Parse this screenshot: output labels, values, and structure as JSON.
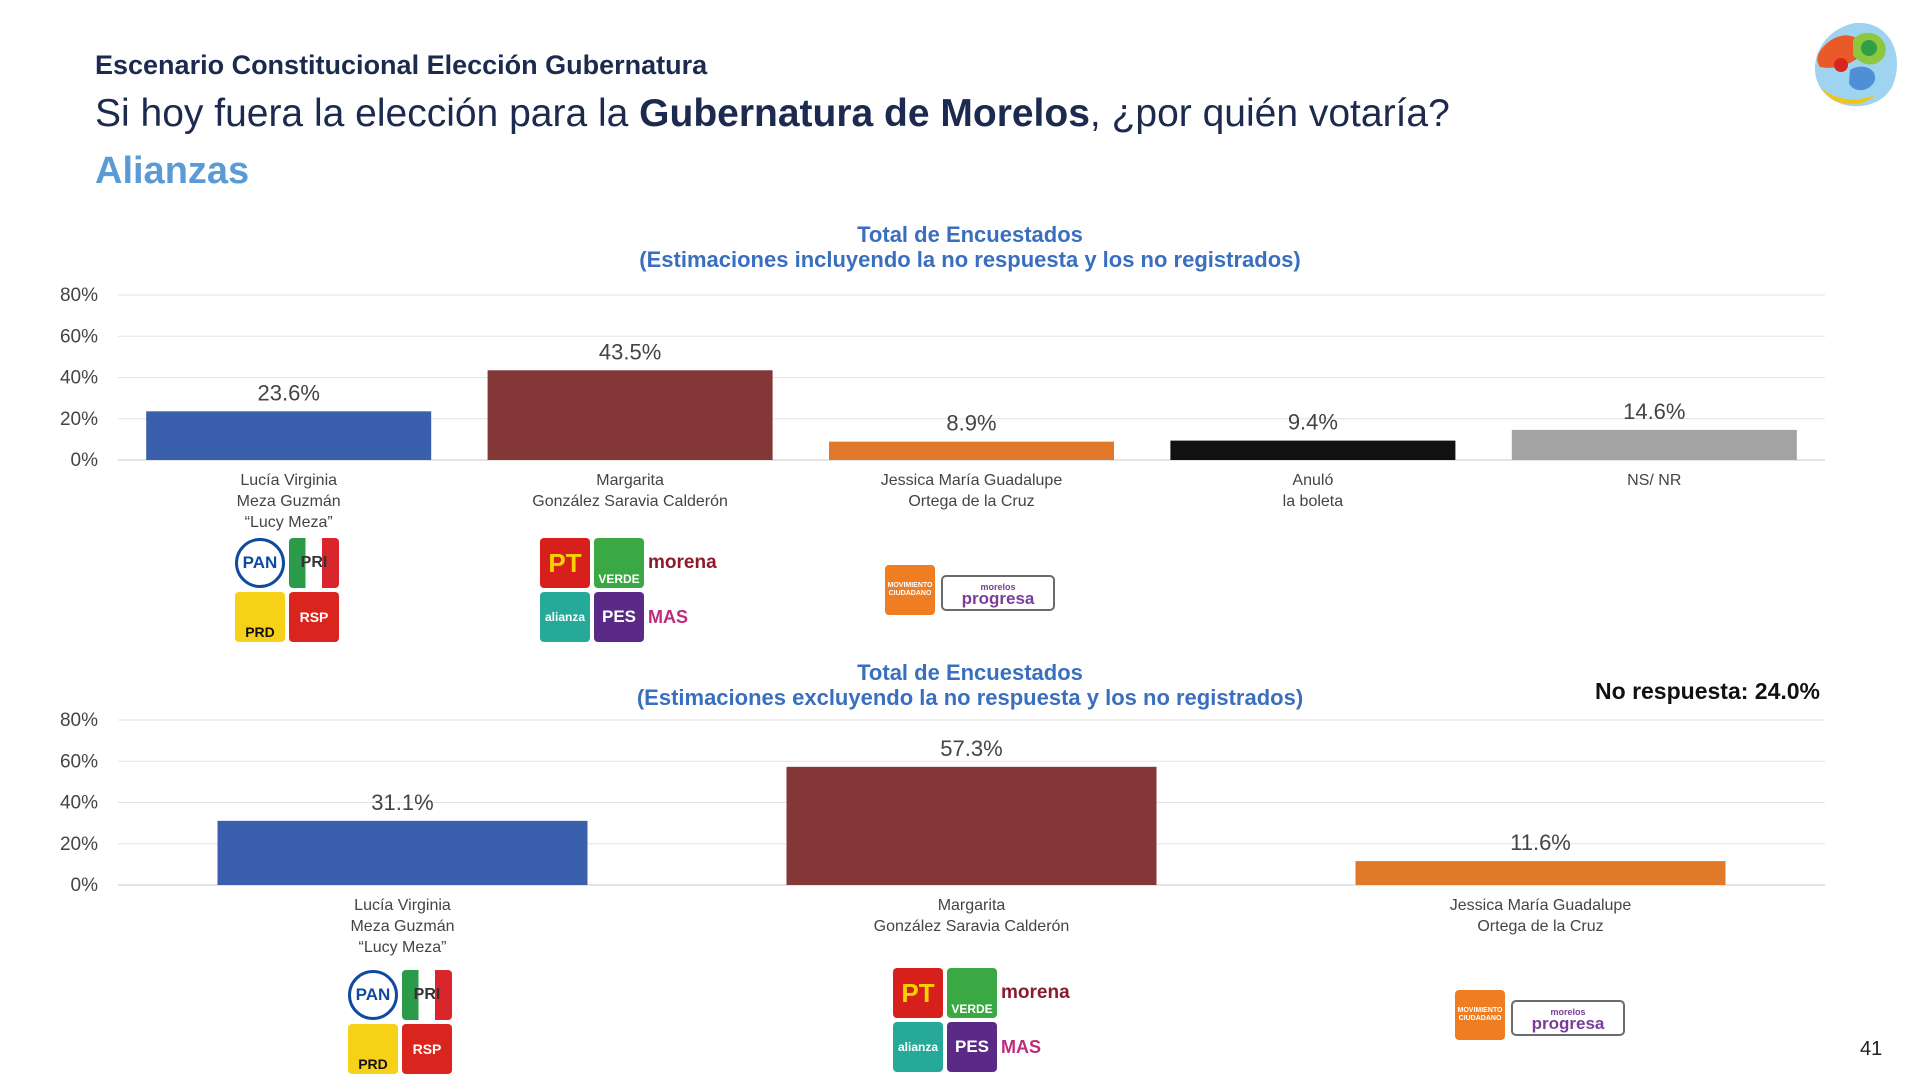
{
  "header": {
    "kicker": "Escenario Constitucional Elección Gubernatura",
    "question_pre": "Si hoy fuera la elección para la ",
    "question_bold": "Gubernatura de Morelos",
    "question_post": ", ¿por quién votaría?",
    "section": "Alianzas"
  },
  "page_number": "41",
  "no_response_note": "No respuesta: 24.0%",
  "colors": {
    "title_blue": "#3a6fc0",
    "section_blue": "#5b9bd5",
    "dark_navy": "#1b2a4e"
  },
  "chart_data": [
    {
      "type": "bar",
      "title": "Total de Encuestados",
      "subtitle": "(Estimaciones incluyendo la no respuesta y los no registrados)",
      "ylim": [
        0,
        80
      ],
      "yticks": [
        "0%",
        "20%",
        "40%",
        "60%",
        "80%"
      ],
      "grid": true,
      "categories": [
        [
          "Lucía Virginia",
          "Meza Guzmán",
          "“Lucy Meza”"
        ],
        [
          "Margarita",
          "González Saravia Calderón"
        ],
        [
          "Jessica María Guadalupe",
          "Ortega de la Cruz"
        ],
        [
          "Anuló",
          "la boleta"
        ],
        [
          "NS/ NR"
        ]
      ],
      "values": [
        23.6,
        43.5,
        8.9,
        9.4,
        14.6
      ],
      "labels": [
        "23.6%",
        "43.5%",
        "8.9%",
        "9.4%",
        "14.6%"
      ],
      "colors": [
        "#3a5fad",
        "#833737",
        "#e07a2a",
        "#111111",
        "#a3a3a3"
      ]
    },
    {
      "type": "bar",
      "title": "Total de Encuestados",
      "subtitle": "(Estimaciones excluyendo la no respuesta y los no registrados)",
      "ylim": [
        0,
        80
      ],
      "yticks": [
        "0%",
        "20%",
        "40%",
        "60%",
        "80%"
      ],
      "grid": true,
      "categories": [
        [
          "Lucía Virginia",
          "Meza Guzmán",
          "“Lucy Meza”"
        ],
        [
          "Margarita",
          "González Saravia Calderón"
        ],
        [
          "Jessica María Guadalupe",
          "Ortega de la Cruz"
        ]
      ],
      "values": [
        31.1,
        57.3,
        11.6
      ],
      "labels": [
        "31.1%",
        "57.3%",
        "11.6%"
      ],
      "colors": [
        "#3a5fad",
        "#833737",
        "#e07a2a"
      ]
    }
  ],
  "parties": {
    "pan": "PAN",
    "pri": "PRI",
    "prd": "PRD",
    "rsp": "RSP",
    "pt": "PT",
    "verde": "VERDE",
    "morena": "morena",
    "alianza": "alianza",
    "pes": "PES",
    "mas": "MAS",
    "mc": "MOVIMIENTO CIUDADANO",
    "progresa_small": "morelos",
    "progresa": "progresa"
  }
}
